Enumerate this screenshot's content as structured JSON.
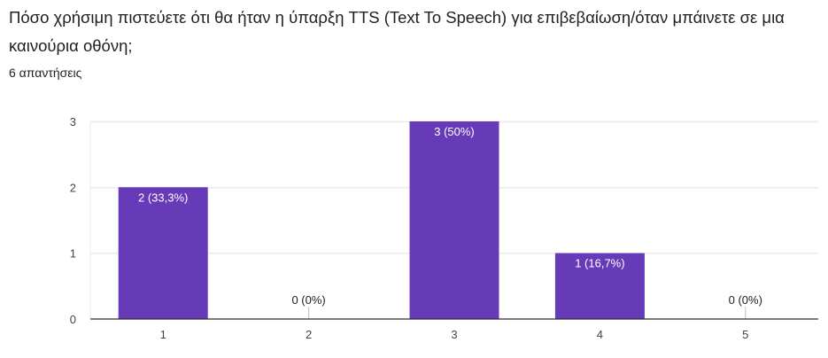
{
  "question": {
    "title": "Πόσο χρήσιμη πιστεύετε ότι θα ήταν η ύπαρξη TTS (Text To Speech) για επιβεβαίωση/όταν μπάινετε σε μια καινούρια οθόνη;",
    "response_count": "6 απαντήσεις"
  },
  "colors": {
    "bar": "#673ab7",
    "label_inside": "#ffffff",
    "label_outside": "#202124",
    "grid": "#e8e8e8",
    "axis": "#333333"
  },
  "chart_data": {
    "type": "bar",
    "categories": [
      "1",
      "2",
      "3",
      "4",
      "5"
    ],
    "values": [
      2,
      0,
      3,
      1,
      0
    ],
    "data_labels": [
      "2 (33,3%)",
      "0 (0%)",
      "3 (50%)",
      "1 (16,7%)",
      "0 (0%)"
    ],
    "y_ticks": [
      "0",
      "1",
      "2",
      "3"
    ],
    "ylim": [
      0,
      3
    ],
    "grid": true,
    "legend": "none"
  }
}
